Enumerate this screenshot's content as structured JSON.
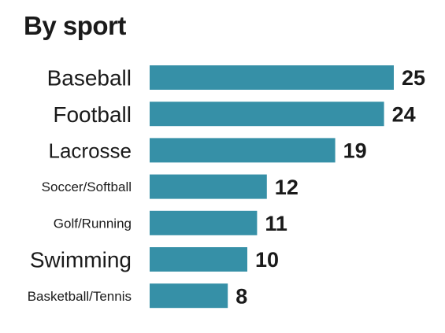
{
  "chart_data": {
    "type": "bar",
    "orientation": "horizontal",
    "title": "By sport",
    "categories": [
      "Baseball",
      "Football",
      "Lacrosse",
      "Soccer/Softball",
      "Golf/Running",
      "Swimming",
      "Basketball/Tennis"
    ],
    "values": [
      25,
      24,
      19,
      12,
      11,
      10,
      8
    ],
    "xlabel": "",
    "ylabel": "",
    "xlim": [
      0,
      25
    ],
    "grid": false,
    "legend": "none",
    "bar_color": "#3690a7",
    "text_color": "#1a1a1a"
  }
}
